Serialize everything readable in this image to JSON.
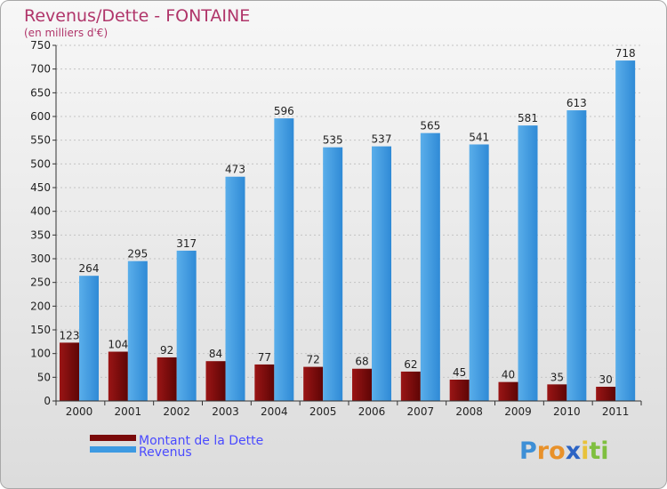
{
  "chart_data": {
    "type": "bar",
    "title": "Revenus/Dette - FONTAINE",
    "subtitle": "(en milliers d'€)",
    "categories": [
      "2000",
      "2001",
      "2002",
      "2003",
      "2004",
      "2005",
      "2006",
      "2007",
      "2008",
      "2009",
      "2010",
      "2011"
    ],
    "series": [
      {
        "name": "Montant de la Dette",
        "color": "#7a0a0a",
        "values": [
          123,
          104,
          92,
          84,
          77,
          72,
          68,
          62,
          45,
          40,
          35,
          30
        ]
      },
      {
        "name": "Revenus",
        "color": "#3d9ae2",
        "values": [
          264,
          295,
          317,
          473,
          596,
          535,
          537,
          565,
          541,
          581,
          613,
          718
        ]
      }
    ],
    "ylim": [
      0,
      750
    ],
    "yticks": [
      0,
      50,
      100,
      150,
      200,
      250,
      300,
      350,
      400,
      450,
      500,
      550,
      600,
      650,
      700,
      750
    ],
    "grid": true,
    "legend_position": "bottom-left"
  },
  "brand": {
    "letters": [
      "P",
      "r",
      "o",
      "x",
      "i",
      "t",
      "i"
    ],
    "colors": [
      "#3d8fd6",
      "#e8912a",
      "#e8912a",
      "#2b63c4",
      "#e8c23a",
      "#7fbf3f",
      "#7fbf3f"
    ]
  }
}
